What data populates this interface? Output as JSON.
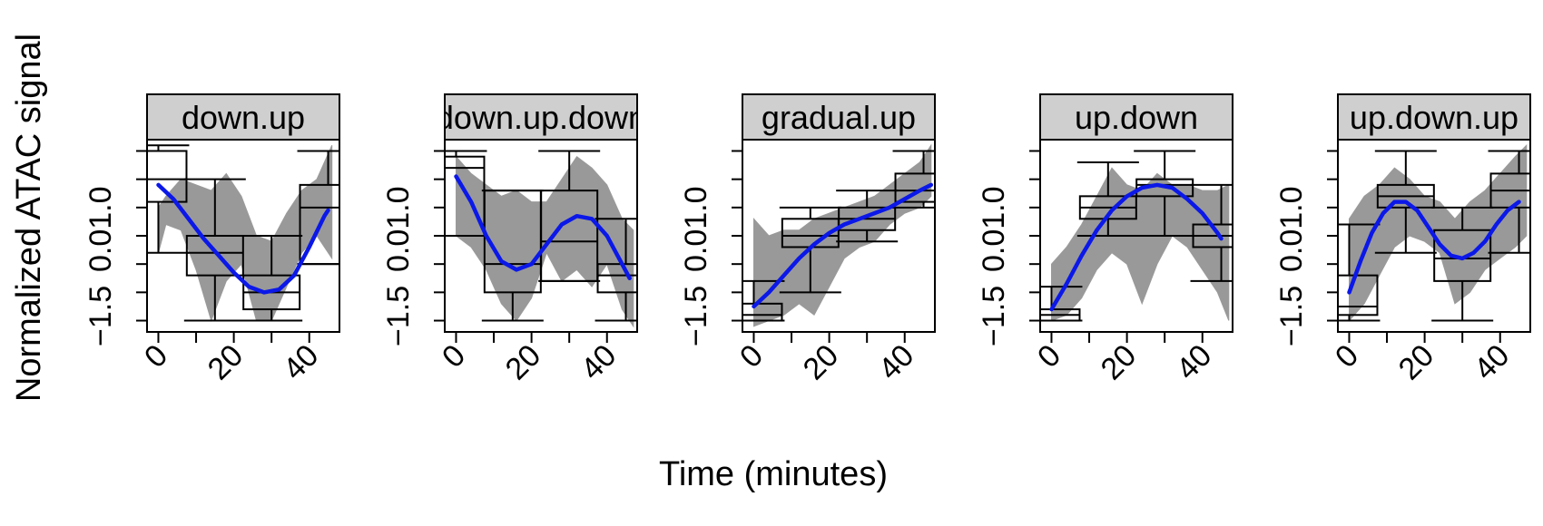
{
  "figure": {
    "ylabel": "Normalized ATAC signal",
    "xlabel": "Time (minutes)"
  },
  "chart_data": {
    "type": "line",
    "x_ticks": [
      0,
      20,
      40
    ],
    "y_tick_labels": [
      "−1.5",
      "0.01.0",
      "0.01.0",
      "−1.5",
      "0.01.0"
    ],
    "y_tick_labels_per_panel": [
      [
        "−1.5",
        "0.01.0"
      ]
    ],
    "colors": {
      "fit": "#0b18e8",
      "band": "#999999",
      "strip": "#cfcfcf"
    },
    "panels": [
      {
        "strip": "down.up",
        "xlim": [
          -3,
          48
        ],
        "ylim": [
          -1.7,
          1.7
        ],
        "band": {
          "x": [
            0,
            2,
            6,
            10,
            14,
            18,
            22,
            26,
            30,
            34,
            38,
            42,
            46
          ],
          "lo": [
            -0.3,
            0.2,
            0.1,
            -0.6,
            -1.5,
            -0.8,
            -0.5,
            -1.5,
            -1.5,
            -0.9,
            -0.3,
            0.0,
            -0.4
          ],
          "hi": [
            0.5,
            0.7,
            1.0,
            0.9,
            0.8,
            1.1,
            0.7,
            0.0,
            -0.1,
            0.4,
            0.8,
            1.0,
            1.6
          ]
        },
        "boxes": [
          {
            "x": 0,
            "q1": 0.6,
            "median": 1.0,
            "q3": 1.5,
            "lo": -0.3,
            "hi": 1.6
          },
          {
            "x": 15,
            "q1": -0.7,
            "median": -0.3,
            "q3": 0.0,
            "lo": -1.5,
            "hi": 1.0
          },
          {
            "x": 30,
            "q1": -1.3,
            "median": -1.0,
            "q3": -0.7,
            "lo": -1.5,
            "hi": 0.0
          },
          {
            "x": 45,
            "q1": -0.5,
            "median": 0.5,
            "q3": 0.9,
            "lo": -0.5,
            "hi": 1.5
          }
        ],
        "fit": {
          "x": [
            0,
            4,
            8,
            12,
            16,
            20,
            24,
            28,
            32,
            36,
            40,
            44,
            45
          ],
          "y": [
            0.9,
            0.65,
            0.3,
            -0.05,
            -0.35,
            -0.65,
            -0.9,
            -1.0,
            -0.95,
            -0.7,
            -0.2,
            0.35,
            0.45
          ]
        }
      },
      {
        "strip": "down.up.down",
        "xlim": [
          -3,
          48
        ],
        "ylim": [
          -1.7,
          1.7
        ],
        "band": {
          "x": [
            0,
            4,
            8,
            12,
            16,
            20,
            24,
            28,
            32,
            36,
            40,
            44,
            47
          ],
          "lo": [
            0.0,
            -0.2,
            -0.6,
            -1.2,
            -1.5,
            -1.1,
            -0.3,
            -0.8,
            -0.6,
            -0.9,
            -0.5,
            -1.3,
            -1.6
          ],
          "hi": [
            1.4,
            1.1,
            0.9,
            0.7,
            0.8,
            0.6,
            0.6,
            1.0,
            1.4,
            1.2,
            0.9,
            0.3,
            0.1
          ]
        },
        "boxes": [
          {
            "x": 0,
            "q1": 0.0,
            "median": 1.2,
            "q3": 1.4,
            "lo": 0.0,
            "hi": 1.5
          },
          {
            "x": 15,
            "q1": -1.0,
            "median": -0.5,
            "q3": 0.8,
            "lo": -1.5,
            "hi": 0.8
          },
          {
            "x": 30,
            "q1": -0.8,
            "median": -0.1,
            "q3": 0.8,
            "lo": -0.8,
            "hi": 1.5
          },
          {
            "x": 45,
            "q1": -1.0,
            "median": -0.7,
            "q3": -0.5,
            "lo": -1.5,
            "hi": 0.3
          }
        ],
        "fit": {
          "x": [
            0,
            4,
            8,
            12,
            16,
            20,
            24,
            28,
            32,
            36,
            40,
            44,
            46
          ],
          "y": [
            1.05,
            0.6,
            0.0,
            -0.45,
            -0.6,
            -0.5,
            -0.15,
            0.2,
            0.35,
            0.3,
            0.0,
            -0.5,
            -0.75
          ]
        }
      },
      {
        "strip": "gradual.up",
        "xlim": [
          -3,
          48
        ],
        "ylim": [
          -1.7,
          1.7
        ],
        "band": {
          "x": [
            0,
            4,
            8,
            12,
            16,
            20,
            24,
            28,
            32,
            36,
            40,
            44,
            47
          ],
          "lo": [
            -1.6,
            -1.5,
            -1.4,
            -1.2,
            -1.4,
            -0.9,
            -0.4,
            -0.2,
            -0.1,
            0.2,
            0.4,
            0.5,
            0.7
          ],
          "hi": [
            0.3,
            0.0,
            0.1,
            0.1,
            0.3,
            0.4,
            0.5,
            0.6,
            0.7,
            0.9,
            1.1,
            1.3,
            1.6
          ]
        },
        "boxes": [
          {
            "x": 0,
            "q1": -1.5,
            "median": -1.4,
            "q3": -1.2,
            "lo": -1.5,
            "hi": -0.8
          },
          {
            "x": 15,
            "q1": -0.2,
            "median": 0.0,
            "q3": 0.3,
            "lo": -1.0,
            "hi": 0.5
          },
          {
            "x": 30,
            "q1": 0.1,
            "median": 0.3,
            "q3": 0.5,
            "lo": -0.1,
            "hi": 0.8
          },
          {
            "x": 45,
            "q1": 0.6,
            "median": 0.8,
            "q3": 1.1,
            "lo": 0.5,
            "hi": 1.5
          }
        ],
        "fit": {
          "x": [
            0,
            4,
            8,
            12,
            16,
            20,
            24,
            28,
            32,
            36,
            40,
            44,
            47
          ],
          "y": [
            -1.25,
            -1.0,
            -0.7,
            -0.4,
            -0.15,
            0.05,
            0.2,
            0.3,
            0.4,
            0.5,
            0.65,
            0.8,
            0.9
          ]
        }
      },
      {
        "strip": "up.down",
        "xlim": [
          -3,
          48
        ],
        "ylim": [
          -1.7,
          1.7
        ],
        "band": {
          "x": [
            0,
            4,
            8,
            12,
            16,
            20,
            24,
            28,
            32,
            36,
            40,
            44,
            47
          ],
          "lo": [
            -1.5,
            -1.4,
            -1.1,
            -0.6,
            -0.3,
            -0.5,
            -1.2,
            -0.5,
            0.0,
            -0.2,
            -0.6,
            -1.0,
            -1.5
          ],
          "hi": [
            -0.5,
            -0.2,
            0.2,
            0.7,
            1.2,
            0.9,
            0.8,
            1.1,
            0.9,
            0.9,
            0.8,
            0.8,
            0.9
          ]
        },
        "boxes": [
          {
            "x": 0,
            "q1": -1.5,
            "median": -1.4,
            "q3": -1.3,
            "lo": -1.5,
            "hi": -0.9
          },
          {
            "x": 15,
            "q1": 0.3,
            "median": 0.5,
            "q3": 0.7,
            "lo": 0.0,
            "hi": 1.3
          },
          {
            "x": 30,
            "q1": 0.7,
            "median": 0.9,
            "q3": 1.0,
            "lo": 0.0,
            "hi": 1.5
          },
          {
            "x": 45,
            "q1": -0.2,
            "median": 0.0,
            "q3": 0.2,
            "lo": -0.8,
            "hi": 0.9
          }
        ],
        "fit": {
          "x": [
            0,
            4,
            8,
            12,
            16,
            20,
            24,
            28,
            32,
            36,
            40,
            44,
            45
          ],
          "y": [
            -1.3,
            -0.85,
            -0.35,
            0.1,
            0.45,
            0.7,
            0.85,
            0.9,
            0.85,
            0.65,
            0.4,
            0.05,
            -0.05
          ]
        }
      },
      {
        "strip": "up.down.up",
        "xlim": [
          -3,
          48
        ],
        "ylim": [
          -1.7,
          1.7
        ],
        "band": {
          "x": [
            0,
            4,
            8,
            12,
            16,
            20,
            24,
            28,
            32,
            36,
            40,
            44,
            47
          ],
          "lo": [
            -1.5,
            -1.2,
            -0.7,
            -0.2,
            0.0,
            -0.1,
            -0.3,
            -1.2,
            -1.0,
            -0.6,
            -0.4,
            -0.2,
            0.0
          ],
          "hi": [
            0.3,
            0.7,
            0.9,
            1.2,
            1.0,
            0.7,
            0.6,
            0.3,
            0.6,
            0.8,
            1.1,
            1.4,
            1.6
          ]
        },
        "boxes": [
          {
            "x": 0,
            "q1": -1.4,
            "median": -1.25,
            "q3": -0.7,
            "lo": -1.5,
            "hi": 0.2
          },
          {
            "x": 15,
            "q1": 0.5,
            "median": 0.7,
            "q3": 0.9,
            "lo": -0.3,
            "hi": 1.5
          },
          {
            "x": 30,
            "q1": -0.8,
            "median": -0.4,
            "q3": 0.1,
            "lo": -1.5,
            "hi": 0.5
          },
          {
            "x": 45,
            "q1": 0.5,
            "median": 0.8,
            "q3": 1.1,
            "lo": -0.3,
            "hi": 1.5
          }
        ],
        "fit": {
          "x": [
            0,
            3,
            6,
            9,
            12,
            15,
            18,
            21,
            24,
            27,
            30,
            33,
            36,
            39,
            42,
            45
          ],
          "y": [
            -1.0,
            -0.45,
            0.05,
            0.4,
            0.6,
            0.6,
            0.45,
            0.15,
            -0.15,
            -0.35,
            -0.4,
            -0.3,
            -0.1,
            0.2,
            0.45,
            0.6
          ]
        }
      }
    ]
  }
}
